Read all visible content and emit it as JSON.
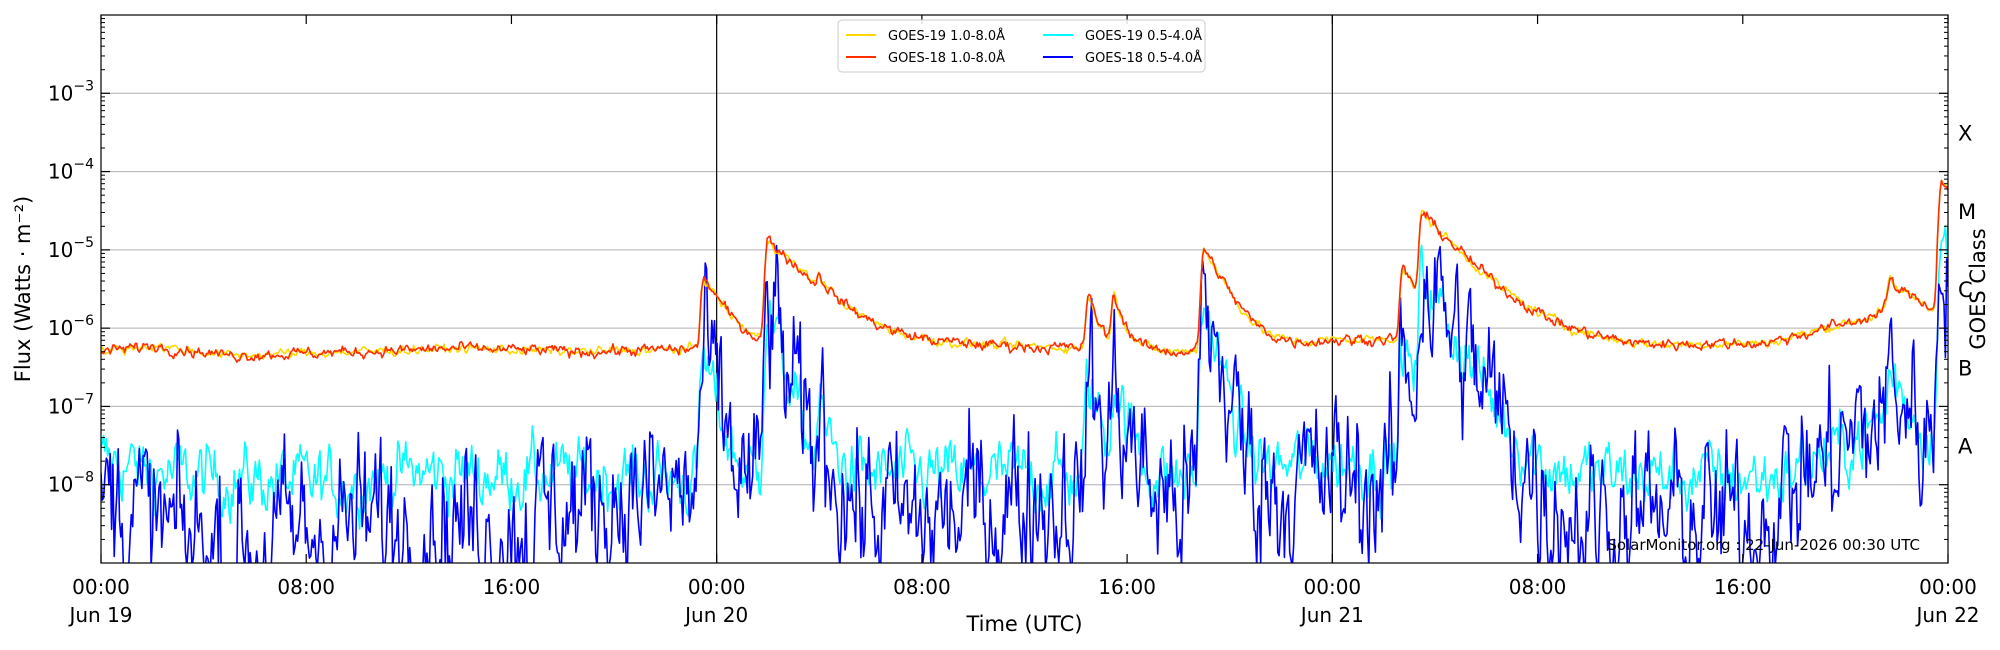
{
  "chart_data": {
    "type": "line",
    "title": "",
    "xlabel": "Time (UTC)",
    "ylabel": "Flux (Watts · m⁻²)",
    "y2label": "GOES Class",
    "yscale": "log",
    "ylim": [
      1e-09,
      0.01
    ],
    "xlim": [
      "2026-06-19 00:00",
      "2026-06-22 00:00"
    ],
    "grid": "horizontal at each decade",
    "legend_position": "top-center",
    "day_separators": [
      "2026-06-20 00:00",
      "2026-06-21 00:00"
    ],
    "x_ticks": [
      {
        "t": "2026-06-19 00:00",
        "time": "00:00",
        "date": "Jun 19"
      },
      {
        "t": "2026-06-19 08:00",
        "time": "08:00",
        "date": ""
      },
      {
        "t": "2026-06-19 16:00",
        "time": "16:00",
        "date": ""
      },
      {
        "t": "2026-06-20 00:00",
        "time": "00:00",
        "date": "Jun 20"
      },
      {
        "t": "2026-06-20 08:00",
        "time": "08:00",
        "date": ""
      },
      {
        "t": "2026-06-20 16:00",
        "time": "16:00",
        "date": ""
      },
      {
        "t": "2026-06-21 00:00",
        "time": "00:00",
        "date": "Jun 21"
      },
      {
        "t": "2026-06-21 08:00",
        "time": "08:00",
        "date": ""
      },
      {
        "t": "2026-06-21 16:00",
        "time": "16:00",
        "date": ""
      },
      {
        "t": "2026-06-22 00:00",
        "time": "00:00",
        "date": "Jun 22"
      }
    ],
    "y_ticks": [
      {
        "value": 1e-08,
        "base": "10",
        "exp": "−8"
      },
      {
        "value": 1e-07,
        "base": "10",
        "exp": "−7"
      },
      {
        "value": 1e-06,
        "base": "10",
        "exp": "−6"
      },
      {
        "value": 1e-05,
        "base": "10",
        "exp": "−5"
      },
      {
        "value": 0.0001,
        "base": "10",
        "exp": "−4"
      },
      {
        "value": 0.001,
        "base": "10",
        "exp": "−3"
      }
    ],
    "goes_classes": [
      {
        "label": "A",
        "value": 1e-08
      },
      {
        "label": "B",
        "value": 1e-07
      },
      {
        "label": "C",
        "value": 1e-06
      },
      {
        "label": "M",
        "value": 1e-05
      },
      {
        "label": "X",
        "value": 0.0001
      }
    ],
    "series": [
      {
        "name": "GOES-19 1.0-8.0Å",
        "color": "#ffd700",
        "baseline": [
          [
            "2026-06-19 00:00",
            5e-07
          ],
          [
            "2026-06-19 02:00",
            6e-07
          ],
          [
            "2026-06-19 05:00",
            4.5e-07
          ],
          [
            "2026-06-19 10:00",
            5e-07
          ],
          [
            "2026-06-19 14:00",
            5.5e-07
          ],
          [
            "2026-06-19 19:00",
            5e-07
          ],
          [
            "2026-06-20 00:00",
            5.5e-07
          ],
          [
            "2026-06-20 05:00",
            6.5e-07
          ],
          [
            "2026-06-20 10:00",
            6e-07
          ],
          [
            "2026-06-20 15:00",
            5.5e-07
          ],
          [
            "2026-06-20 18:00",
            5e-07
          ],
          [
            "2026-06-20 22:00",
            6e-07
          ],
          [
            "2026-06-21 00:00",
            7e-07
          ],
          [
            "2026-06-21 07:00",
            8e-07
          ],
          [
            "2026-06-21 12:00",
            6e-07
          ],
          [
            "2026-06-21 17:00",
            6.5e-07
          ],
          [
            "2026-06-21 21:00",
            1.4e-06
          ],
          [
            "2026-06-21 22:30",
            2.5e-06
          ],
          [
            "2026-06-22 00:00",
            1.5e-06
          ]
        ],
        "peaks": [
          [
            "2026-06-19 23:30",
            4e-06
          ],
          [
            "2026-06-20 02:00",
            1.3e-05
          ],
          [
            "2026-06-20 04:00",
            1.3e-06
          ],
          [
            "2026-06-20 14:30",
            2e-06
          ],
          [
            "2026-06-20 15:30",
            2e-06
          ],
          [
            "2026-06-20 19:00",
            1e-05
          ],
          [
            "2026-06-21 02:45",
            5e-06
          ],
          [
            "2026-06-21 03:30",
            2.7e-05
          ],
          [
            "2026-06-21 21:45",
            2.3e-06
          ],
          [
            "2026-06-21 23:45",
            7e-05
          ]
        ],
        "noise": 0.025
      },
      {
        "name": "GOES-18 1.0-8.0Å",
        "color": "#ff2d00",
        "baseline": [
          [
            "2026-06-19 00:00",
            5e-07
          ],
          [
            "2026-06-19 02:00",
            6e-07
          ],
          [
            "2026-06-19 05:00",
            4.5e-07
          ],
          [
            "2026-06-19 10:00",
            5e-07
          ],
          [
            "2026-06-19 14:00",
            5.5e-07
          ],
          [
            "2026-06-19 19:00",
            5e-07
          ],
          [
            "2026-06-20 00:00",
            5.5e-07
          ],
          [
            "2026-06-20 05:00",
            6.5e-07
          ],
          [
            "2026-06-20 10:00",
            6e-07
          ],
          [
            "2026-06-20 15:00",
            5.5e-07
          ],
          [
            "2026-06-20 18:00",
            5e-07
          ],
          [
            "2026-06-20 22:00",
            6e-07
          ],
          [
            "2026-06-21 00:00",
            7e-07
          ],
          [
            "2026-06-21 07:00",
            8e-07
          ],
          [
            "2026-06-21 12:00",
            6e-07
          ],
          [
            "2026-06-21 17:00",
            6.5e-07
          ],
          [
            "2026-06-21 21:00",
            1.4e-06
          ],
          [
            "2026-06-21 22:30",
            2.5e-06
          ],
          [
            "2026-06-22 00:00",
            1.5e-06
          ]
        ],
        "peaks": [
          [
            "2026-06-19 23:30",
            4e-06
          ],
          [
            "2026-06-20 02:00",
            1.3e-05
          ],
          [
            "2026-06-20 04:00",
            1.3e-06
          ],
          [
            "2026-06-20 14:30",
            2e-06
          ],
          [
            "2026-06-20 15:30",
            2e-06
          ],
          [
            "2026-06-20 19:00",
            1e-05
          ],
          [
            "2026-06-21 02:45",
            5e-06
          ],
          [
            "2026-06-21 03:30",
            2.7e-05
          ],
          [
            "2026-06-21 21:45",
            2.3e-06
          ],
          [
            "2026-06-21 23:45",
            7e-05
          ]
        ],
        "noise": 0.03
      },
      {
        "name": "GOES-19 0.5-4.0Å",
        "color": "#00ffff",
        "baseline": [
          [
            "2026-06-19 00:00",
            2e-08
          ],
          [
            "2026-06-19 03:00",
            1.3e-08
          ],
          [
            "2026-06-19 09:00",
            1e-08
          ],
          [
            "2026-06-19 12:00",
            1.4e-08
          ],
          [
            "2026-06-19 18:00",
            1.3e-08
          ],
          [
            "2026-06-20 00:00",
            1.2e-08
          ],
          [
            "2026-06-20 06:00",
            1.3e-08
          ],
          [
            "2026-06-20 12:00",
            1.3e-08
          ],
          [
            "2026-06-20 18:00",
            1.2e-08
          ],
          [
            "2026-06-21 00:00",
            2e-08
          ],
          [
            "2026-06-21 05:00",
            1.4e-08
          ],
          [
            "2026-06-21 12:00",
            1.3e-08
          ],
          [
            "2026-06-21 17:00",
            1.2e-08
          ],
          [
            "2026-06-21 20:00",
            3e-08
          ],
          [
            "2026-06-21 22:00",
            1e-07
          ],
          [
            "2026-06-22 00:00",
            2.5e-08
          ]
        ],
        "peaks": [
          [
            "2026-06-19 23:30",
            4e-07
          ],
          [
            "2026-06-20 02:00",
            2e-06
          ],
          [
            "2026-06-20 04:00",
            7e-08
          ],
          [
            "2026-06-20 14:30",
            2e-07
          ],
          [
            "2026-06-20 15:30",
            2e-07
          ],
          [
            "2026-06-20 19:00",
            2e-06
          ],
          [
            "2026-06-21 02:45",
            6e-07
          ],
          [
            "2026-06-21 03:30",
            5e-06
          ],
          [
            "2026-06-21 21:45",
            2e-07
          ],
          [
            "2026-06-21 23:45",
            1.4e-05
          ]
        ],
        "noise": 0.18
      },
      {
        "name": "GOES-18 0.5-4.0Å",
        "color": "#0000ff",
        "baseline": [
          [
            "2026-06-19 00:00",
            8e-09
          ],
          [
            "2026-06-19 03:00",
            2e-09
          ],
          [
            "2026-06-19 06:00",
            1.5e-09
          ],
          [
            "2026-06-19 09:00",
            3e-09
          ],
          [
            "2026-06-19 12:00",
            3e-09
          ],
          [
            "2026-06-19 16:00",
            3e-09
          ],
          [
            "2026-06-19 20:00",
            7e-09
          ],
          [
            "2026-06-20 00:00",
            8e-09
          ],
          [
            "2026-06-20 04:00",
            6e-09
          ],
          [
            "2026-06-20 08:00",
            3e-09
          ],
          [
            "2026-06-20 12:00",
            7e-09
          ],
          [
            "2026-06-20 16:00",
            6e-09
          ],
          [
            "2026-06-20 20:00",
            8e-09
          ],
          [
            "2026-06-21 00:00",
            1.2e-08
          ],
          [
            "2026-06-21 04:00",
            8e-09
          ],
          [
            "2026-06-21 08:00",
            3e-09
          ],
          [
            "2026-06-21 12:00",
            4e-09
          ],
          [
            "2026-06-21 16:00",
            3e-09
          ],
          [
            "2026-06-21 18:00",
            1e-08
          ],
          [
            "2026-06-21 22:00",
            1e-07
          ],
          [
            "2026-06-22 00:00",
            2.2e-08
          ]
        ],
        "peaks": [
          [
            "2026-06-19 23:30",
            4e-07
          ],
          [
            "2026-06-20 02:00",
            2e-06
          ],
          [
            "2026-06-20 04:00",
            7e-08
          ],
          [
            "2026-06-20 14:30",
            2e-07
          ],
          [
            "2026-06-20 15:30",
            1.7e-07
          ],
          [
            "2026-06-20 19:00",
            2e-06
          ],
          [
            "2026-06-21 02:45",
            6e-07
          ],
          [
            "2026-06-21 03:30",
            5e-06
          ],
          [
            "2026-06-21 21:45",
            2e-07
          ],
          [
            "2026-06-21 23:45",
            1.4e-05
          ]
        ],
        "noise": 0.45
      }
    ]
  },
  "footer": {
    "credit": "SolarMonitor.org : 22-Jun-2026 00:30 UTC"
  }
}
